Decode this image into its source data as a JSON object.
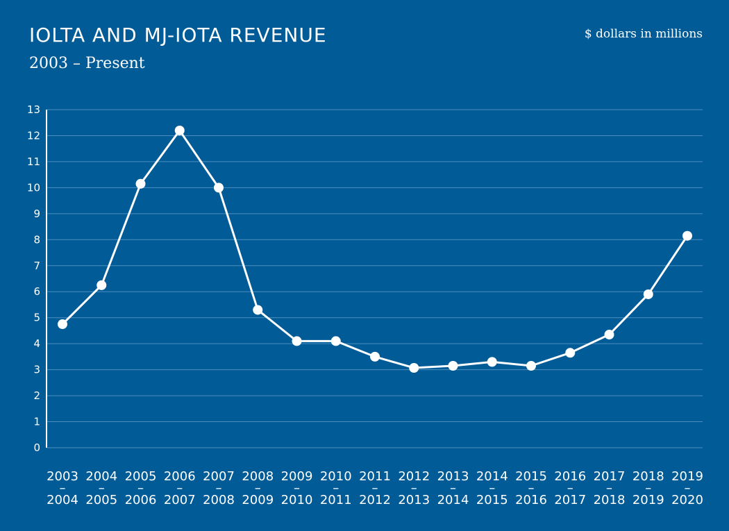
{
  "header": {
    "title": "IOLTA AND MJ-IOTA REVENUE",
    "subtitle": "2003 – Present",
    "units": "$ dollars in millions"
  },
  "colors": {
    "background": "#005b96",
    "line": "#ffffff",
    "grid": "#4e8fc0"
  },
  "chart_data": {
    "type": "line",
    "title": "IOLTA AND MJ-IOTA REVENUE",
    "subtitle": "2003 – Present",
    "xlabel": "",
    "ylabel": "$ dollars in millions",
    "ylim": [
      0,
      13
    ],
    "yticks": [
      0,
      1,
      2,
      3,
      4,
      5,
      6,
      7,
      8,
      9,
      10,
      11,
      12,
      13
    ],
    "grid": true,
    "categories": [
      [
        "2003",
        "–",
        "2004"
      ],
      [
        "2004",
        "–",
        "2005"
      ],
      [
        "2005",
        "–",
        "2006"
      ],
      [
        "2006",
        "–",
        "2007"
      ],
      [
        "2007",
        "–",
        "2008"
      ],
      [
        "2008",
        "–",
        "2009"
      ],
      [
        "2009",
        "–",
        "2010"
      ],
      [
        "2010",
        "–",
        "2011"
      ],
      [
        "2011",
        "–",
        "2012"
      ],
      [
        "2012",
        "–",
        "2013"
      ],
      [
        "2013",
        "–",
        "2014"
      ],
      [
        "2014",
        "–",
        "2015"
      ],
      [
        "2015",
        "–",
        "2016"
      ],
      [
        "2016",
        "–",
        "2017"
      ],
      [
        "2017",
        "–",
        "2018"
      ],
      [
        "2018",
        "–",
        "2019"
      ],
      [
        "2019",
        "–",
        "2020"
      ]
    ],
    "series": [
      {
        "values": [
          4.75,
          6.25,
          10.15,
          12.2,
          10.0,
          5.3,
          4.1,
          4.1,
          3.5,
          3.07,
          3.15,
          3.3,
          3.15,
          3.65,
          4.35,
          5.9,
          8.15
        ]
      }
    ]
  }
}
